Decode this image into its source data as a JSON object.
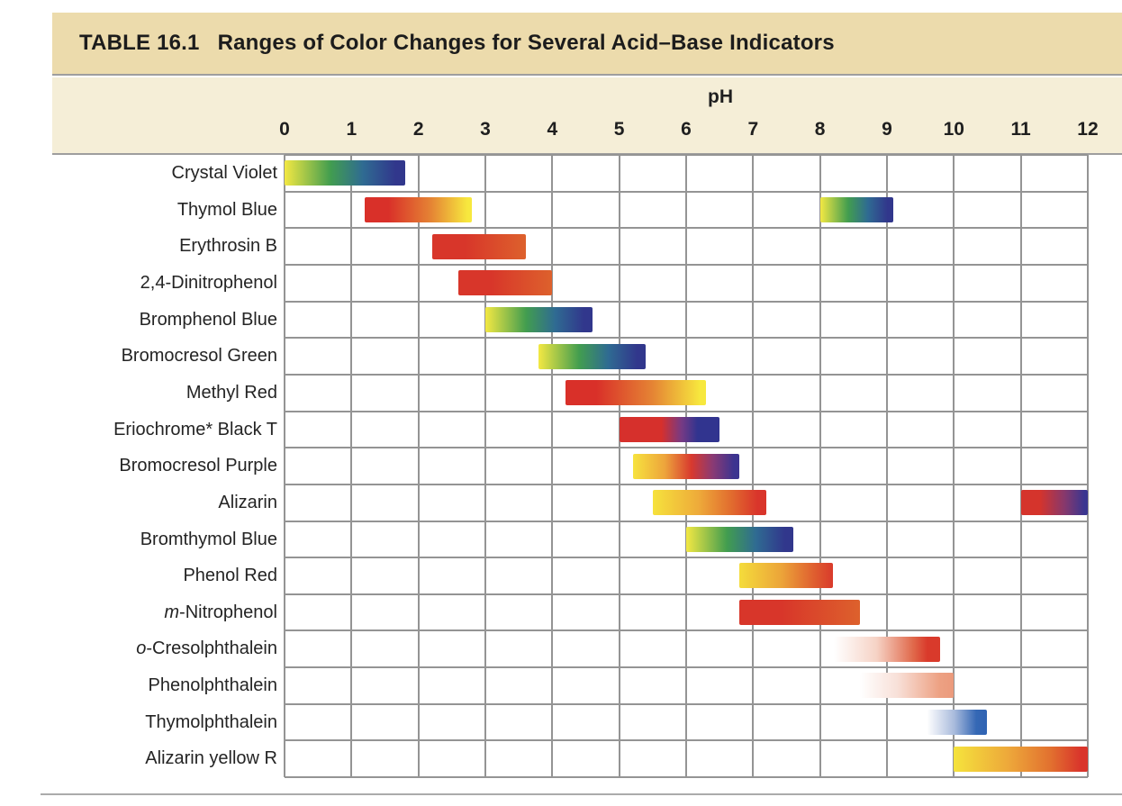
{
  "title": {
    "label": "TABLE 16.1",
    "text": "Ranges of Color Changes for Several Acid–Base Indicators"
  },
  "axis": {
    "label": "pH",
    "ticks": [
      "0",
      "1",
      "2",
      "3",
      "4",
      "5",
      "6",
      "7",
      "8",
      "9",
      "10",
      "11",
      "12"
    ],
    "min": 0,
    "max": 12
  },
  "colors": {
    "title_band_bg": "#ecdbac",
    "axis_band_bg": "#f5eed7",
    "grid": "#949494",
    "band_rule": "#9e9e9e",
    "label_text": "#242424",
    "title_text": "#1c1c1c"
  },
  "palettes": {
    "yellow_green_blue": [
      "#f3e843 0%",
      "#429d4f 38%",
      "#2f6b92 65%",
      "#31378c 92%"
    ],
    "red_orange_yellow": [
      "#d93029 0%",
      "#d93029 22%",
      "#e58434 62%",
      "#f7e83e 96%"
    ],
    "red_orange": [
      "#d8362a 0%",
      "#d8362a 35%",
      "#dd612c 100%"
    ],
    "red_purple_navy": [
      "#d6302c 0%",
      "#d6302c 42%",
      "#763a84 62%",
      "#31348f 78%",
      "#31348f 100%"
    ],
    "yellow_red_purple": [
      "#f7e33e 0%",
      "#eda43c 30%",
      "#d8392e 55%",
      "#8a3a74 75%",
      "#3c3490 95%"
    ],
    "yellow_orange_red": [
      "#f6e23c 0%",
      "#eeab3a 40%",
      "#e16a2e 70%",
      "#d9352b 92%"
    ],
    "yellow_orange_red_late": [
      "#f4dc3b 0%",
      "#eca439 45%",
      "#df5e2f 80%",
      "#d93a2b 100%"
    ],
    "red_to_navy": [
      "#d5342c 0%",
      "#d5342c 28%",
      "#87386c 65%",
      "#3a3690 95%"
    ],
    "white_to_red": [
      "#ffffff 0%",
      "#f6d3c6 40%",
      "#e0684a 75%",
      "#d93a2b 88%",
      "#d93a2b 100%"
    ],
    "white_to_pink": [
      "#ffffff 0%",
      "#f8e0d8 40%",
      "#eda183 85%",
      "#eb9a7c 100%"
    ],
    "white_to_blue": [
      "#fdfdfe 0%",
      "#a9bbdc 45%",
      "#3568b5 82%",
      "#2f63b3 100%"
    ],
    "yellow_orange_red_full": [
      "#f5e33c 0%",
      "#eda63a 42%",
      "#e2712f 72%",
      "#d9342b 95%"
    ]
  },
  "chart_data": {
    "type": "bar",
    "subtype": "horizontal-range-bars",
    "title": "TABLE 16.1  Ranges of Color Changes for Several Acid–Base Indicators",
    "xlabel": "pH",
    "xlim": [
      0,
      12
    ],
    "grid": true,
    "rows": [
      {
        "prefix": "",
        "name": "Crystal Violet",
        "bars": [
          {
            "from": 0.0,
            "to": 1.8,
            "palette": "yellow_green_blue"
          }
        ]
      },
      {
        "prefix": "",
        "name": "Thymol Blue",
        "bars": [
          {
            "from": 1.2,
            "to": 2.8,
            "palette": "red_orange_yellow"
          },
          {
            "from": 8.0,
            "to": 9.1,
            "palette": "yellow_green_blue"
          }
        ]
      },
      {
        "prefix": "",
        "name": "Erythrosin B",
        "bars": [
          {
            "from": 2.2,
            "to": 3.6,
            "palette": "red_orange"
          }
        ]
      },
      {
        "prefix": "",
        "name": "2,4-Dinitrophenol",
        "bars": [
          {
            "from": 2.6,
            "to": 4.0,
            "palette": "red_orange"
          }
        ]
      },
      {
        "prefix": "",
        "name": "Bromphenol Blue",
        "bars": [
          {
            "from": 3.0,
            "to": 4.6,
            "palette": "yellow_green_blue"
          }
        ]
      },
      {
        "prefix": "",
        "name": "Bromocresol Green",
        "bars": [
          {
            "from": 3.8,
            "to": 5.4,
            "palette": "yellow_green_blue"
          }
        ]
      },
      {
        "prefix": "",
        "name": "Methyl Red",
        "bars": [
          {
            "from": 4.2,
            "to": 6.3,
            "palette": "red_orange_yellow"
          }
        ]
      },
      {
        "prefix": "",
        "name": "Eriochrome* Black T",
        "bars": [
          {
            "from": 5.0,
            "to": 6.5,
            "palette": "red_purple_navy"
          }
        ]
      },
      {
        "prefix": "",
        "name": "Bromocresol Purple",
        "bars": [
          {
            "from": 5.2,
            "to": 6.8,
            "palette": "yellow_red_purple"
          }
        ]
      },
      {
        "prefix": "",
        "name": "Alizarin",
        "bars": [
          {
            "from": 5.5,
            "to": 7.2,
            "palette": "yellow_orange_red"
          },
          {
            "from": 11.0,
            "to": 12.0,
            "palette": "red_to_navy"
          }
        ]
      },
      {
        "prefix": "",
        "name": "Bromthymol Blue",
        "bars": [
          {
            "from": 6.0,
            "to": 7.6,
            "palette": "yellow_green_blue"
          }
        ]
      },
      {
        "prefix": "",
        "name": "Phenol Red",
        "bars": [
          {
            "from": 6.8,
            "to": 8.2,
            "palette": "yellow_orange_red_late"
          }
        ]
      },
      {
        "prefix": "m",
        "name": "-Nitrophenol",
        "bars": [
          {
            "from": 6.8,
            "to": 8.6,
            "palette": "red_orange"
          }
        ]
      },
      {
        "prefix": "o",
        "name": "-Cresolphthalein",
        "bars": [
          {
            "from": 8.2,
            "to": 9.8,
            "palette": "white_to_red"
          }
        ]
      },
      {
        "prefix": "",
        "name": "Phenolphthalein",
        "bars": [
          {
            "from": 8.6,
            "to": 10.0,
            "palette": "white_to_pink"
          }
        ]
      },
      {
        "prefix": "",
        "name": "Thymolphthalein",
        "bars": [
          {
            "from": 9.6,
            "to": 10.5,
            "palette": "white_to_blue"
          }
        ]
      },
      {
        "prefix": "",
        "name": "Alizarin yellow R",
        "bars": [
          {
            "from": 10.0,
            "to": 12.0,
            "palette": "yellow_orange_red_full"
          }
        ]
      }
    ]
  }
}
